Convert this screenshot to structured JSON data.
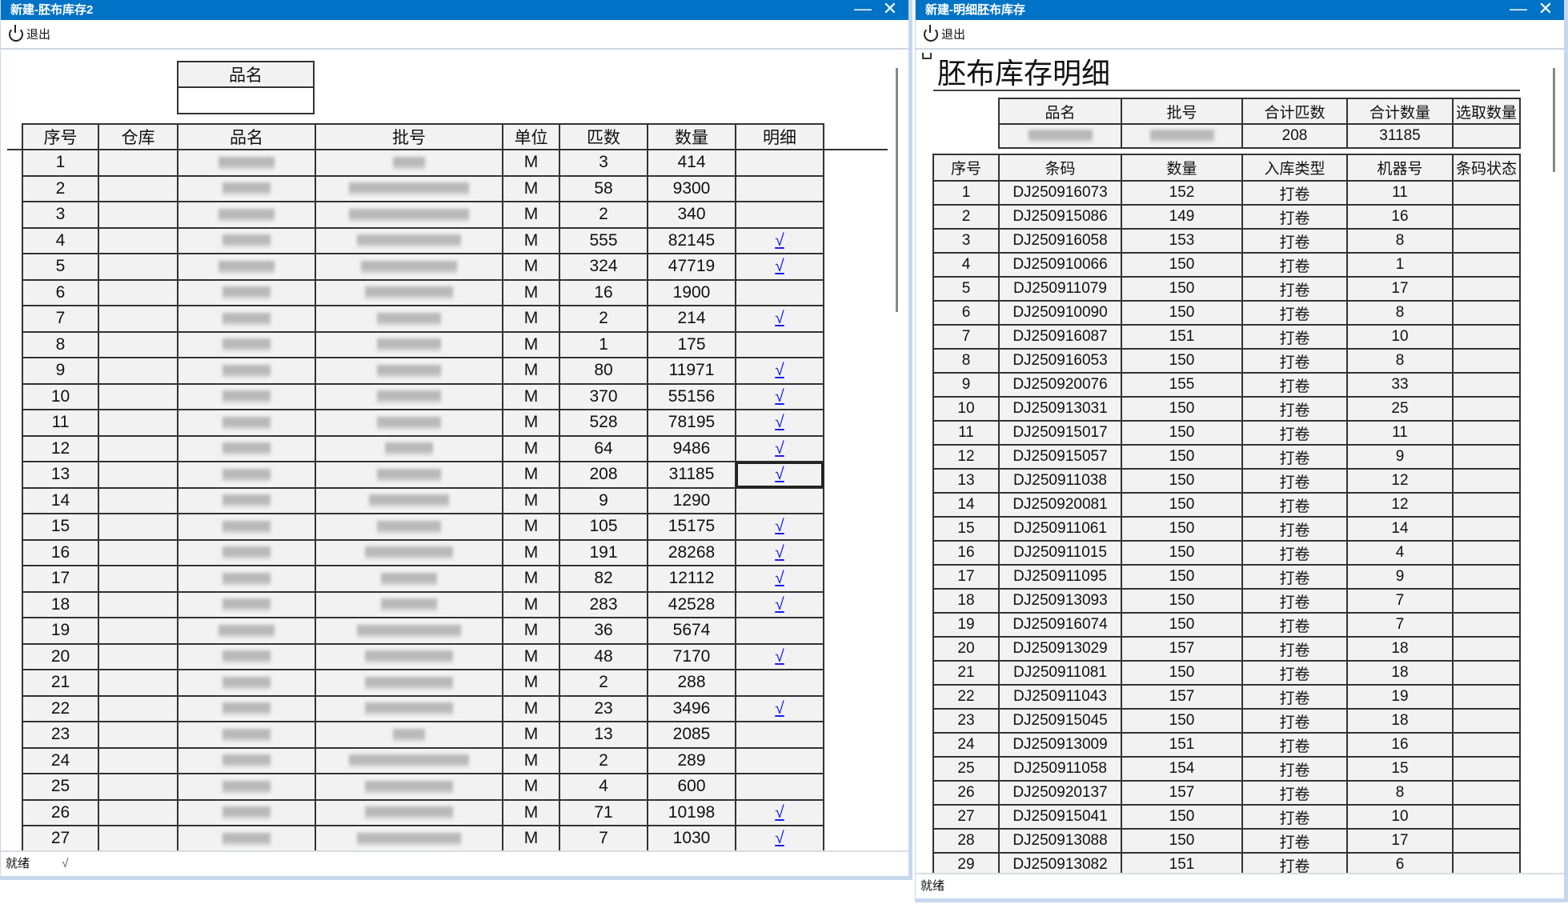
{
  "left": {
    "title": "新建-胚布库存2",
    "exit_label": "退出",
    "filter": {
      "header": "品名",
      "value": ""
    },
    "columns": [
      "序号",
      "仓库",
      "品名",
      "批号",
      "单位",
      "匹数",
      "数量",
      "明细"
    ],
    "rows": [
      {
        "seq": "1",
        "unit": "M",
        "pieces": "3",
        "qty": "414",
        "detail": ""
      },
      {
        "seq": "2",
        "unit": "M",
        "pieces": "58",
        "qty": "9300",
        "detail": ""
      },
      {
        "seq": "3",
        "unit": "M",
        "pieces": "2",
        "qty": "340",
        "detail": ""
      },
      {
        "seq": "4",
        "unit": "M",
        "pieces": "555",
        "qty": "82145",
        "detail": "√"
      },
      {
        "seq": "5",
        "unit": "M",
        "pieces": "324",
        "qty": "47719",
        "detail": "√"
      },
      {
        "seq": "6",
        "unit": "M",
        "pieces": "16",
        "qty": "1900",
        "detail": ""
      },
      {
        "seq": "7",
        "unit": "M",
        "pieces": "2",
        "qty": "214",
        "detail": "√"
      },
      {
        "seq": "8",
        "unit": "M",
        "pieces": "1",
        "qty": "175",
        "detail": ""
      },
      {
        "seq": "9",
        "unit": "M",
        "pieces": "80",
        "qty": "11971",
        "detail": "√"
      },
      {
        "seq": "10",
        "unit": "M",
        "pieces": "370",
        "qty": "55156",
        "detail": "√"
      },
      {
        "seq": "11",
        "unit": "M",
        "pieces": "528",
        "qty": "78195",
        "detail": "√"
      },
      {
        "seq": "12",
        "unit": "M",
        "pieces": "64",
        "qty": "9486",
        "detail": "√"
      },
      {
        "seq": "13",
        "unit": "M",
        "pieces": "208",
        "qty": "31185",
        "detail": "√",
        "selected": true
      },
      {
        "seq": "14",
        "unit": "M",
        "pieces": "9",
        "qty": "1290",
        "detail": ""
      },
      {
        "seq": "15",
        "unit": "M",
        "pieces": "105",
        "qty": "15175",
        "detail": "√"
      },
      {
        "seq": "16",
        "unit": "M",
        "pieces": "191",
        "qty": "28268",
        "detail": "√"
      },
      {
        "seq": "17",
        "unit": "M",
        "pieces": "82",
        "qty": "12112",
        "detail": "√"
      },
      {
        "seq": "18",
        "unit": "M",
        "pieces": "283",
        "qty": "42528",
        "detail": "√"
      },
      {
        "seq": "19",
        "unit": "M",
        "pieces": "36",
        "qty": "5674",
        "detail": ""
      },
      {
        "seq": "20",
        "unit": "M",
        "pieces": "48",
        "qty": "7170",
        "detail": "√"
      },
      {
        "seq": "21",
        "unit": "M",
        "pieces": "2",
        "qty": "288",
        "detail": ""
      },
      {
        "seq": "22",
        "unit": "M",
        "pieces": "23",
        "qty": "3496",
        "detail": "√"
      },
      {
        "seq": "23",
        "unit": "M",
        "pieces": "13",
        "qty": "2085",
        "detail": ""
      },
      {
        "seq": "24",
        "unit": "M",
        "pieces": "2",
        "qty": "289",
        "detail": ""
      },
      {
        "seq": "25",
        "unit": "M",
        "pieces": "4",
        "qty": "600",
        "detail": ""
      },
      {
        "seq": "26",
        "unit": "M",
        "pieces": "71",
        "qty": "10198",
        "detail": "√"
      },
      {
        "seq": "27",
        "unit": "M",
        "pieces": "7",
        "qty": "1030",
        "detail": "√"
      }
    ],
    "status": "就绪",
    "status_extra": "√"
  },
  "right": {
    "title": "新建-明细胚布库存",
    "exit_label": "退出",
    "heading": "胚布库存明细",
    "summary_columns": [
      "品名",
      "批号",
      "合计匹数",
      "合计数量",
      "选取数量"
    ],
    "summary": {
      "total_pieces": "208",
      "total_qty": "31185",
      "selected_qty": ""
    },
    "columns": [
      "序号",
      "条码",
      "数量",
      "入库类型",
      "机器号",
      "条码状态"
    ],
    "rows": [
      [
        "1",
        "DJ250916073",
        "152",
        "打卷",
        "11",
        ""
      ],
      [
        "2",
        "DJ250915086",
        "149",
        "打卷",
        "16",
        ""
      ],
      [
        "3",
        "DJ250916058",
        "153",
        "打卷",
        "8",
        ""
      ],
      [
        "4",
        "DJ250910066",
        "150",
        "打卷",
        "1",
        ""
      ],
      [
        "5",
        "DJ250911079",
        "150",
        "打卷",
        "17",
        ""
      ],
      [
        "6",
        "DJ250910090",
        "150",
        "打卷",
        "8",
        ""
      ],
      [
        "7",
        "DJ250916087",
        "151",
        "打卷",
        "10",
        ""
      ],
      [
        "8",
        "DJ250916053",
        "150",
        "打卷",
        "8",
        ""
      ],
      [
        "9",
        "DJ250920076",
        "155",
        "打卷",
        "33",
        ""
      ],
      [
        "10",
        "DJ250913031",
        "150",
        "打卷",
        "25",
        ""
      ],
      [
        "11",
        "DJ250915017",
        "150",
        "打卷",
        "11",
        ""
      ],
      [
        "12",
        "DJ250915057",
        "150",
        "打卷",
        "9",
        ""
      ],
      [
        "13",
        "DJ250911038",
        "150",
        "打卷",
        "12",
        ""
      ],
      [
        "14",
        "DJ250920081",
        "150",
        "打卷",
        "12",
        ""
      ],
      [
        "15",
        "DJ250911061",
        "150",
        "打卷",
        "14",
        ""
      ],
      [
        "16",
        "DJ250911015",
        "150",
        "打卷",
        "4",
        ""
      ],
      [
        "17",
        "DJ250911095",
        "150",
        "打卷",
        "9",
        ""
      ],
      [
        "18",
        "DJ250913093",
        "150",
        "打卷",
        "7",
        ""
      ],
      [
        "19",
        "DJ250916074",
        "150",
        "打卷",
        "7",
        ""
      ],
      [
        "20",
        "DJ250913029",
        "157",
        "打卷",
        "18",
        ""
      ],
      [
        "21",
        "DJ250911081",
        "150",
        "打卷",
        "18",
        ""
      ],
      [
        "22",
        "DJ250911043",
        "157",
        "打卷",
        "19",
        ""
      ],
      [
        "23",
        "DJ250915045",
        "150",
        "打卷",
        "18",
        ""
      ],
      [
        "24",
        "DJ250913009",
        "151",
        "打卷",
        "16",
        ""
      ],
      [
        "25",
        "DJ250911058",
        "154",
        "打卷",
        "15",
        ""
      ],
      [
        "26",
        "DJ250920137",
        "157",
        "打卷",
        "8",
        ""
      ],
      [
        "27",
        "DJ250915041",
        "150",
        "打卷",
        "10",
        ""
      ],
      [
        "28",
        "DJ250913088",
        "150",
        "打卷",
        "17",
        ""
      ],
      [
        "29",
        "DJ250913082",
        "151",
        "打卷",
        "6",
        ""
      ]
    ],
    "status": "就绪"
  },
  "colors": {
    "titlebar": "#0173c6",
    "link": "#1a1aff"
  }
}
